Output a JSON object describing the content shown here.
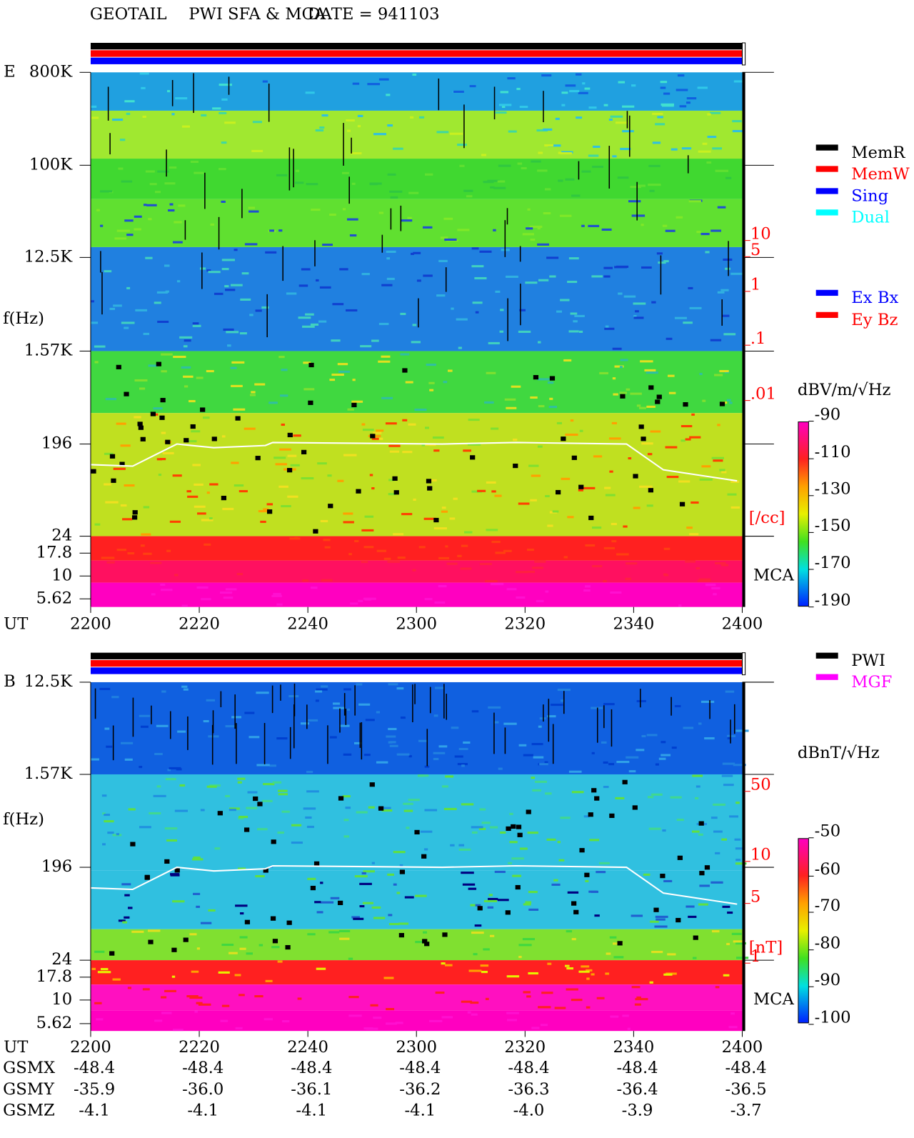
{
  "header": {
    "instrument": "GEOTAIL",
    "mode": "PWI SFA & MCA",
    "date": "DATE = 941103"
  },
  "panels": [
    {
      "component": "E",
      "freq_title": "f(Hz)",
      "freq_labels": [
        "800K",
        "100K",
        "12.5K",
        "1.57K",
        "196",
        "24",
        "17.8",
        "10",
        "5.62"
      ],
      "density_labels": [
        "10",
        "5",
        "1",
        ".1",
        ".01"
      ],
      "density_unit": "[/cc]",
      "mca_label": "MCA",
      "time_title": "UT",
      "time_labels": [
        "2200",
        "2220",
        "2240",
        "2300",
        "2320",
        "2340",
        "2400"
      ],
      "colorbar_unit": "dBV/m/√Hz",
      "colorbar_ticks": [
        "-90",
        "-110",
        "-130",
        "-150",
        "-170",
        "-190"
      ],
      "legend": [
        {
          "name": "MemR",
          "color": "#000000"
        },
        {
          "name": "MemW",
          "color": "#ff0000"
        },
        {
          "name": "Sing",
          "color": "#0000ff"
        },
        {
          "name": "Dual",
          "color": "#00ffff"
        }
      ],
      "legend2": [
        {
          "name": "Ex Bx",
          "color": "#0000ff"
        },
        {
          "name": "Ey Bz",
          "color": "#ff0000"
        }
      ]
    },
    {
      "component": "B",
      "freq_title": "f(Hz)",
      "freq_labels": [
        "12.5K",
        "1.57K",
        "196",
        "24",
        "17.8",
        "10",
        "5.62"
      ],
      "density_labels": [
        "50",
        "10",
        "5",
        "1"
      ],
      "density_unit": "[nT]",
      "mca_label": "MCA",
      "time_title": "UT",
      "time_labels": [
        "2200",
        "2220",
        "2240",
        "2300",
        "2320",
        "2340",
        "2400"
      ],
      "colorbar_unit": "dBnT/√Hz",
      "colorbar_ticks": [
        "-50",
        "-60",
        "-70",
        "-80",
        "-90",
        "-100"
      ],
      "legend": [
        {
          "name": "PWI",
          "color": "#000000"
        },
        {
          "name": "MGF",
          "color": "#ff00ff"
        }
      ]
    }
  ],
  "orbit": {
    "rows": [
      {
        "name": "GSMX",
        "values": [
          "-48.4",
          "-48.4",
          "-48.4",
          "-48.4",
          "-48.4",
          "-48.4",
          "-48.4"
        ]
      },
      {
        "name": "GSMY",
        "values": [
          "-35.9",
          "-36.0",
          "-36.1",
          "-36.2",
          "-36.3",
          "-36.4",
          "-36.5"
        ]
      },
      {
        "name": "GSMZ",
        "values": [
          "-4.1",
          "-4.1",
          "-4.1",
          "-4.1",
          "-4.0",
          "-3.9",
          "-3.7"
        ]
      }
    ]
  }
}
